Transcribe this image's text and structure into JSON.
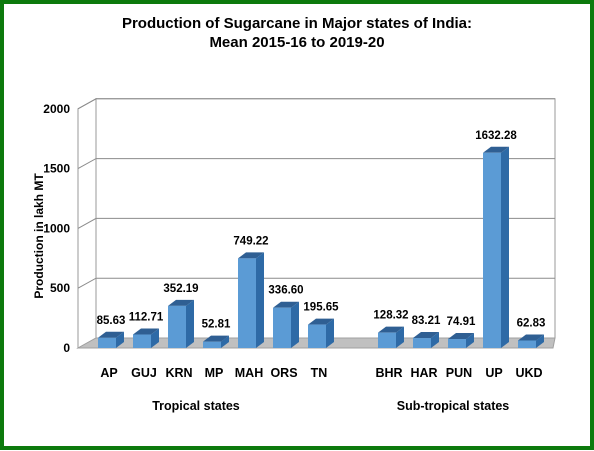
{
  "chart_data": {
    "type": "bar",
    "title_line1": "Production of Sugarcane in Major states of India:",
    "title_line2": "Mean 2015-16 to 2019-20",
    "ylabel": "Production in lakh MT",
    "ylim": [
      0,
      2000
    ],
    "yticks": [
      "0",
      "500",
      "1000",
      "1500",
      "2000"
    ],
    "grid": true,
    "style": "3d-column",
    "bar_color": "#5b9bd5",
    "groups": [
      {
        "label": "Tropical states",
        "categories": [
          "AP",
          "GUJ",
          "KRN",
          "MP",
          "MAH",
          "ORS",
          "TN"
        ],
        "values": [
          85.63,
          112.71,
          352.19,
          52.81,
          749.22,
          336.6,
          195.65
        ],
        "value_labels": [
          "85.63",
          "112.71",
          "352.19",
          "52.81",
          "749.22",
          "336.60",
          "195.65"
        ]
      },
      {
        "label": "Sub-tropical states",
        "categories": [
          "BHR",
          "HAR",
          "PUN",
          "UP",
          "UKD"
        ],
        "values": [
          128.32,
          83.21,
          74.91,
          1632.28,
          62.83
        ],
        "value_labels": [
          "128.32",
          "83.21",
          "74.91",
          "1632.28",
          "62.83"
        ]
      }
    ]
  }
}
